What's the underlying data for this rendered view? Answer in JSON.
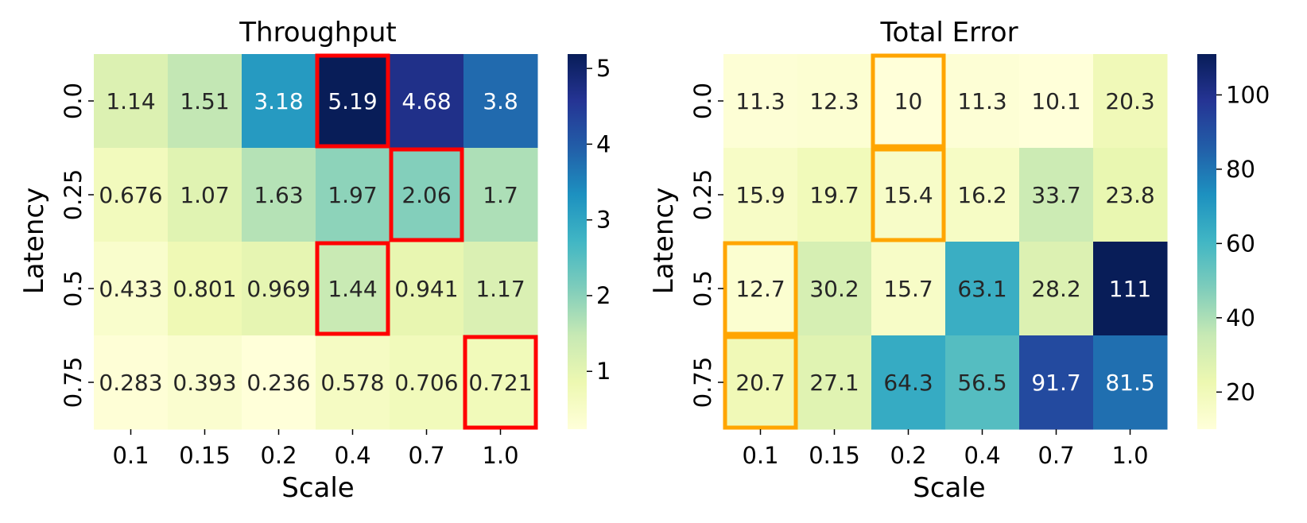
{
  "chart_data": [
    {
      "type": "heatmap",
      "title": "Throughput",
      "xlabel": "Scale",
      "ylabel": "Latency",
      "x_categories": [
        "0.1",
        "0.15",
        "0.2",
        "0.4",
        "0.7",
        "1.0"
      ],
      "y_categories": [
        "0.0",
        "0.25",
        "0.5",
        "0.75"
      ],
      "values": [
        [
          1.14,
          1.51,
          3.18,
          5.19,
          4.68,
          3.8
        ],
        [
          0.676,
          1.07,
          1.63,
          1.97,
          2.06,
          1.7
        ],
        [
          0.433,
          0.801,
          0.969,
          1.44,
          0.941,
          1.17
        ],
        [
          0.283,
          0.393,
          0.236,
          0.578,
          0.706,
          0.721
        ]
      ],
      "labels": [
        [
          "1.14",
          "1.51",
          "3.18",
          "5.19",
          "4.68",
          "3.8"
        ],
        [
          "0.676",
          "1.07",
          "1.63",
          "1.97",
          "2.06",
          "1.7"
        ],
        [
          "0.433",
          "0.801",
          "0.969",
          "1.44",
          "0.941",
          "1.17"
        ],
        [
          "0.283",
          "0.393",
          "0.236",
          "0.578",
          "0.706",
          "0.721"
        ]
      ],
      "vmin": 0.236,
      "vmax": 5.19,
      "colorbar_ticks": [
        "1",
        "2",
        "3",
        "4",
        "5"
      ],
      "colormap": "YlGnBu",
      "highlight_color": "#ff0000",
      "highlighted_cells": [
        [
          0,
          3
        ],
        [
          1,
          4
        ],
        [
          2,
          3
        ],
        [
          3,
          5
        ]
      ]
    },
    {
      "type": "heatmap",
      "title": "Total Error",
      "xlabel": "Scale",
      "ylabel": "Latency",
      "x_categories": [
        "0.1",
        "0.15",
        "0.2",
        "0.4",
        "0.7",
        "1.0"
      ],
      "y_categories": [
        "0.0",
        "0.25",
        "0.5",
        "0.75"
      ],
      "values": [
        [
          11.3,
          12.3,
          10,
          11.3,
          10.1,
          20.3
        ],
        [
          15.9,
          19.7,
          15.4,
          16.2,
          33.7,
          23.8
        ],
        [
          12.7,
          30.2,
          15.7,
          63.1,
          28.2,
          111
        ],
        [
          20.7,
          27.1,
          64.3,
          56.5,
          91.7,
          81.5
        ]
      ],
      "labels": [
        [
          "11.3",
          "12.3",
          "10",
          "11.3",
          "10.1",
          "20.3"
        ],
        [
          "15.9",
          "19.7",
          "15.4",
          "16.2",
          "33.7",
          "23.8"
        ],
        [
          "12.7",
          "30.2",
          "15.7",
          "63.1",
          "28.2",
          "111"
        ],
        [
          "20.7",
          "27.1",
          "64.3",
          "56.5",
          "91.7",
          "81.5"
        ]
      ],
      "vmin": 10,
      "vmax": 111,
      "colorbar_ticks": [
        "20",
        "40",
        "60",
        "80",
        "100"
      ],
      "colormap": "YlGnBu",
      "highlight_color": "#ffa500",
      "highlighted_cells": [
        [
          0,
          2
        ],
        [
          1,
          2
        ],
        [
          2,
          0
        ],
        [
          3,
          0
        ]
      ]
    }
  ]
}
